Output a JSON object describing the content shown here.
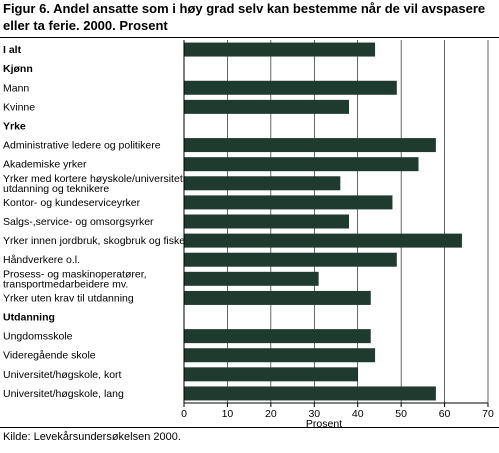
{
  "title_line1": "Figur 6. Andel ansatte som i høy grad selv kan bestemme når de vil avspasere",
  "title_line2": "eller ta ferie. 2000. Prosent",
  "source": "Kilde: Levekårsundersøkelsen 2000.",
  "colors": {
    "bar": "#1f3a2f",
    "grid": "#000000"
  },
  "chart_data": {
    "type": "bar",
    "orientation": "horizontal",
    "xlabel": "Prosent",
    "xlim": [
      0,
      70
    ],
    "xticks": [
      0,
      10,
      20,
      30,
      40,
      50,
      60,
      70
    ],
    "grid": true,
    "rows": [
      {
        "label": "I alt",
        "bold": true,
        "value": 44
      },
      {
        "label": "Kjønn",
        "bold": true,
        "value": null
      },
      {
        "label": "Mann",
        "bold": false,
        "value": 49
      },
      {
        "label": "Kvinne",
        "bold": false,
        "value": 38
      },
      {
        "label": "Yrke",
        "bold": true,
        "value": null
      },
      {
        "label": "Administrative ledere og politikere",
        "bold": false,
        "value": 58
      },
      {
        "label": "Akademiske yrker",
        "bold": false,
        "value": 54
      },
      {
        "label": "Yrker med kortere høyskole/universitets-\nutdanning og teknikere",
        "bold": false,
        "value": 36
      },
      {
        "label": "Kontor- og kundeserviceyrker",
        "bold": false,
        "value": 48
      },
      {
        "label": "Salgs-,service- og omsorgsyrker",
        "bold": false,
        "value": 38
      },
      {
        "label": "Yrker innen jordbruk, skogbruk og fiske",
        "bold": false,
        "value": 64
      },
      {
        "label": "Håndverkere o.l.",
        "bold": false,
        "value": 49
      },
      {
        "label": "Prosess- og maskinoperatører,\ntransportmedarbeidere mv.",
        "bold": false,
        "value": 31
      },
      {
        "label": "Yrker uten krav til utdanning",
        "bold": false,
        "value": 43
      },
      {
        "label": "Utdanning",
        "bold": true,
        "value": null
      },
      {
        "label": "Ungdomsskole",
        "bold": false,
        "value": 43
      },
      {
        "label": "Videregående skole",
        "bold": false,
        "value": 44
      },
      {
        "label": "Universitet/høgskole, kort",
        "bold": false,
        "value": 40
      },
      {
        "label": "Universitet/høgskole, lang",
        "bold": false,
        "value": 58
      }
    ]
  }
}
